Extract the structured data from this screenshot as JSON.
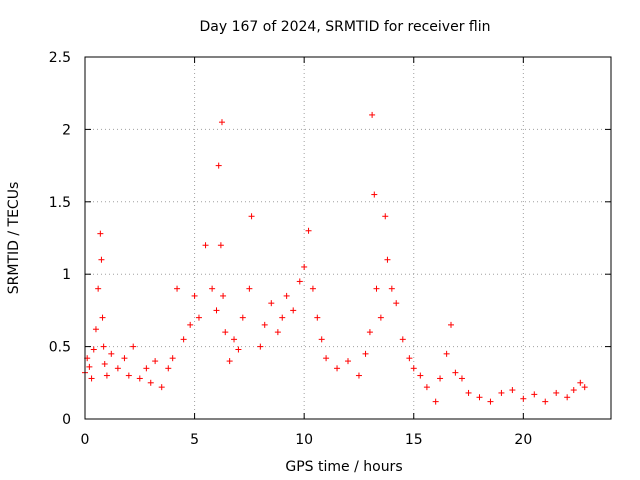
{
  "chart_data": {
    "type": "scatter",
    "title": "Day 167 of 2024, SRMTID for receiver flin",
    "xlabel": "GPS time / hours",
    "ylabel": "SRMTID / TECUs",
    "xlim": [
      0,
      24
    ],
    "ylim": [
      0,
      2.5
    ],
    "xticks": [
      0,
      5,
      10,
      15,
      20
    ],
    "xtick_labels": [
      "0",
      "5",
      "10",
      "15",
      "20"
    ],
    "yticks": [
      0,
      0.5,
      1,
      1.5,
      2,
      2.5
    ],
    "ytick_labels": [
      "0",
      "0.5",
      "1",
      "1.5",
      "2",
      "2.5"
    ],
    "grid": true,
    "marker": "+",
    "series_color": "#ff0000",
    "series": [
      {
        "name": "SRMTID",
        "x": [
          0.0,
          0.1,
          0.2,
          0.3,
          0.4,
          0.5,
          0.6,
          0.7,
          0.75,
          0.8,
          0.85,
          0.9,
          1.0,
          1.2,
          1.5,
          1.8,
          2.0,
          2.2,
          2.5,
          2.8,
          3.0,
          3.2,
          3.5,
          3.8,
          4.0,
          4.2,
          4.5,
          4.8,
          5.0,
          5.2,
          5.5,
          5.8,
          6.0,
          6.1,
          6.2,
          6.25,
          6.3,
          6.4,
          6.6,
          6.8,
          7.0,
          7.2,
          7.5,
          7.6,
          8.0,
          8.2,
          8.5,
          8.8,
          9.0,
          9.2,
          9.5,
          9.8,
          10.0,
          10.2,
          10.4,
          10.6,
          10.8,
          11.0,
          11.5,
          12.0,
          12.5,
          12.8,
          13.0,
          13.1,
          13.2,
          13.3,
          13.5,
          13.7,
          13.8,
          14.0,
          14.2,
          14.5,
          14.8,
          15.0,
          15.3,
          15.6,
          16.0,
          16.2,
          16.5,
          16.7,
          16.9,
          17.2,
          17.5,
          18.0,
          18.5,
          19.0,
          19.5,
          20.0,
          20.5,
          21.0,
          21.5,
          22.0,
          22.3,
          22.6,
          22.8
        ],
        "y": [
          0.32,
          0.42,
          0.36,
          0.28,
          0.48,
          0.62,
          0.9,
          1.28,
          1.1,
          0.7,
          0.5,
          0.38,
          0.3,
          0.45,
          0.35,
          0.42,
          0.3,
          0.5,
          0.28,
          0.35,
          0.25,
          0.4,
          0.22,
          0.35,
          0.42,
          0.9,
          0.55,
          0.65,
          0.85,
          0.7,
          1.2,
          0.9,
          0.75,
          1.75,
          1.2,
          2.05,
          0.85,
          0.6,
          0.4,
          0.55,
          0.48,
          0.7,
          0.9,
          1.4,
          0.5,
          0.65,
          0.8,
          0.6,
          0.7,
          0.85,
          0.75,
          0.95,
          1.05,
          1.3,
          0.9,
          0.7,
          0.55,
          0.42,
          0.35,
          0.4,
          0.3,
          0.45,
          0.6,
          2.1,
          1.55,
          0.9,
          0.7,
          1.4,
          1.1,
          0.9,
          0.8,
          0.55,
          0.42,
          0.35,
          0.3,
          0.22,
          0.12,
          0.28,
          0.45,
          0.65,
          0.32,
          0.28,
          0.18,
          0.15,
          0.12,
          0.18,
          0.2,
          0.14,
          0.17,
          0.12,
          0.18,
          0.15,
          0.2,
          0.25,
          0.22
        ]
      }
    ]
  }
}
